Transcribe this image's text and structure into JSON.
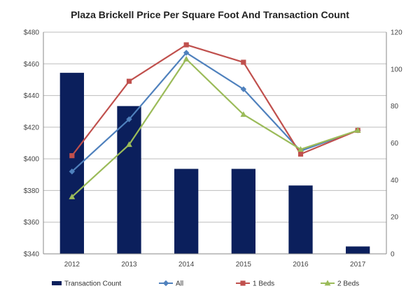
{
  "chart_data": {
    "type": "bar",
    "title": "Plaza Brickell Price Per Square Foot And Transaction Count",
    "categories": [
      "2012",
      "2013",
      "2014",
      "2015",
      "2016",
      "2017"
    ],
    "y_left": {
      "range": [
        340,
        480
      ],
      "ticks": [
        340,
        360,
        380,
        400,
        420,
        440,
        460,
        480
      ],
      "tick_labels": [
        "$340",
        "$360",
        "$380",
        "$400",
        "$420",
        "$440",
        "$460",
        "$480"
      ]
    },
    "y_right": {
      "range": [
        0,
        120
      ],
      "ticks": [
        0,
        20,
        40,
        60,
        80,
        100,
        120
      ],
      "tick_labels": [
        "0",
        "20",
        "40",
        "60",
        "80",
        "100",
        "120"
      ]
    },
    "grid": true,
    "legend_position": "bottom",
    "series": [
      {
        "name": "Transaction Count",
        "kind": "bar",
        "axis": "right",
        "color": "#0b1f5c",
        "values": [
          98,
          80,
          46,
          46,
          37,
          4
        ]
      },
      {
        "name": "All",
        "kind": "line",
        "axis": "left",
        "marker": "diamond",
        "color": "#4f81bd",
        "values": [
          392,
          425,
          467,
          444,
          405,
          418
        ]
      },
      {
        "name": "1 Beds",
        "kind": "line",
        "axis": "left",
        "marker": "square",
        "color": "#c0504d",
        "values": [
          402,
          449,
          472,
          461,
          403,
          418
        ]
      },
      {
        "name": "2 Beds",
        "kind": "line",
        "axis": "left",
        "marker": "triangle",
        "color": "#9bbb59",
        "values": [
          376,
          409,
          463,
          428,
          406,
          418
        ]
      }
    ]
  }
}
